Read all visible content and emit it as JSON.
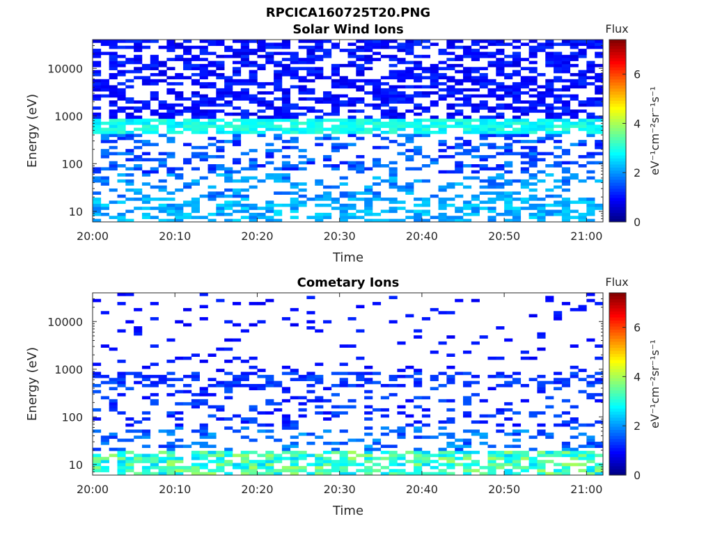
{
  "figure": {
    "title": "RPCICA160725T20.PNG"
  },
  "colors": {
    "colormap": [
      "#00007f",
      "#0000ff",
      "#007fff",
      "#00ffff",
      "#7fff7f",
      "#ffff00",
      "#ff7f00",
      "#ff0000",
      "#7f0000"
    ],
    "axis": "#262626"
  },
  "colorbar": {
    "title": "Flux",
    "label": "eV⁻¹cm⁻²sr⁻¹s⁻¹",
    "range": [
      0,
      7.4
    ],
    "ticks": [
      "0",
      "2",
      "4",
      "6"
    ]
  },
  "chart_data": [
    {
      "type": "heatmap",
      "title": "Solar Wind Ions",
      "xlabel": "Time",
      "ylabel": "Energy (eV)",
      "xlim": [
        "20:00",
        "21:02"
      ],
      "xticks": [
        "20:00",
        "20:10",
        "20:20",
        "20:30",
        "20:40",
        "20:50",
        "21:00"
      ],
      "yscale": "log",
      "ylim": [
        6,
        40000
      ],
      "yticks": [
        "10",
        "100",
        "1000",
        "10000"
      ],
      "bands": [
        {
          "energy_range": [
            6,
            20
          ],
          "flux_range": [
            1.8,
            2.6
          ],
          "occupancy": 0.45
        },
        {
          "energy_range": [
            20,
            60
          ],
          "flux_range": [
            1.5,
            2.4
          ],
          "occupancy": 0.3
        },
        {
          "energy_range": [
            60,
            450
          ],
          "flux_range": [
            1.0,
            2.0
          ],
          "occupancy": 0.35
        },
        {
          "energy_range": [
            450,
            900
          ],
          "flux_range": [
            2.5,
            3.2
          ],
          "occupancy": 0.7
        },
        {
          "energy_range": [
            900,
            40000
          ],
          "flux_range": [
            0.7,
            1.3
          ],
          "occupancy": 0.55
        }
      ]
    },
    {
      "type": "heatmap",
      "title": "Cometary Ions",
      "xlabel": "Time",
      "ylabel": "Energy (eV)",
      "xlim": [
        "20:00",
        "21:02"
      ],
      "xticks": [
        "20:00",
        "20:10",
        "20:20",
        "20:30",
        "20:40",
        "20:50",
        "21:00"
      ],
      "yscale": "log",
      "ylim": [
        6,
        40000
      ],
      "yticks": [
        "10",
        "100",
        "1000",
        "10000"
      ],
      "bands": [
        {
          "energy_range": [
            6,
            20
          ],
          "flux_range": [
            2.4,
            4.0
          ],
          "occupancy": 0.55
        },
        {
          "energy_range": [
            20,
            60
          ],
          "flux_range": [
            1.2,
            2.2
          ],
          "occupancy": 0.25
        },
        {
          "energy_range": [
            60,
            450
          ],
          "flux_range": [
            0.9,
            1.6
          ],
          "occupancy": 0.2
        },
        {
          "energy_range": [
            450,
            900
          ],
          "flux_range": [
            1.0,
            1.6
          ],
          "occupancy": 0.35
        },
        {
          "energy_range": [
            900,
            40000
          ],
          "flux_range": [
            0.8,
            1.2
          ],
          "occupancy": 0.07
        }
      ]
    }
  ]
}
